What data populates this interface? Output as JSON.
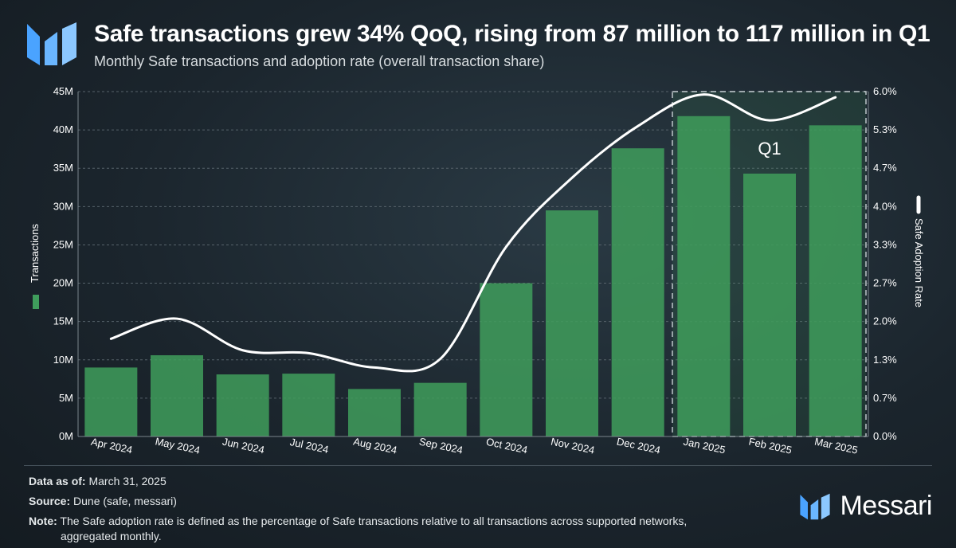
{
  "header": {
    "title": "Safe transactions grew 34% QoQ, rising from 87 million to 117 million in Q1",
    "subtitle": "Monthly Safe transactions and adoption rate (overall transaction share)"
  },
  "colors": {
    "bar": "#3f9d5c",
    "line": "#ffffff",
    "grid": "#56626a",
    "highlight_box": "#c8d0d4",
    "logo": "#4aa3ff"
  },
  "chart_data": {
    "type": "bar",
    "categories": [
      "Apr 2024",
      "May 2024",
      "Jun 2024",
      "Jul 2024",
      "Aug 2024",
      "Sep 2024",
      "Oct 2024",
      "Nov 2024",
      "Dec 2024",
      "Jan 2025",
      "Feb 2025",
      "Mar 2025"
    ],
    "series": [
      {
        "name": "Transactions",
        "type": "bar",
        "axis": "left",
        "values": [
          9.0,
          10.6,
          8.1,
          8.2,
          6.2,
          7.0,
          20.0,
          29.5,
          37.6,
          41.8,
          34.3,
          40.6
        ]
      },
      {
        "name": "Safe Adoption Rate",
        "type": "line",
        "axis": "right",
        "values": [
          1.7,
          2.05,
          1.5,
          1.45,
          1.2,
          1.35,
          3.3,
          4.5,
          5.4,
          5.95,
          5.5,
          5.9
        ]
      }
    ],
    "ylim": [
      0,
      45
    ],
    "y2lim": [
      0,
      6.0
    ],
    "yticks": [
      "0M",
      "5M",
      "10M",
      "15M",
      "20M",
      "25M",
      "30M",
      "35M",
      "40M",
      "45M"
    ],
    "y2ticks": [
      "0.0%",
      "0.7%",
      "1.3%",
      "2.0%",
      "2.7%",
      "3.3%",
      "4.0%",
      "4.7%",
      "5.3%",
      "6.0%"
    ],
    "ylabel": "Transactions",
    "y2label": "Safe Adoption Rate",
    "annotation": "Q1",
    "grid": true
  },
  "footer": {
    "data_as_of_label": "Data as of:",
    "data_as_of_value": "March 31, 2025",
    "source_label": "Source:",
    "source_value": "Dune (safe, messari)",
    "note_label": "Note:",
    "note_line1": "The Safe adoption rate is defined as the percentage of Safe transactions relative to all transactions across supported networks,",
    "note_line2": "aggregated monthly.",
    "brand": "Messari"
  }
}
